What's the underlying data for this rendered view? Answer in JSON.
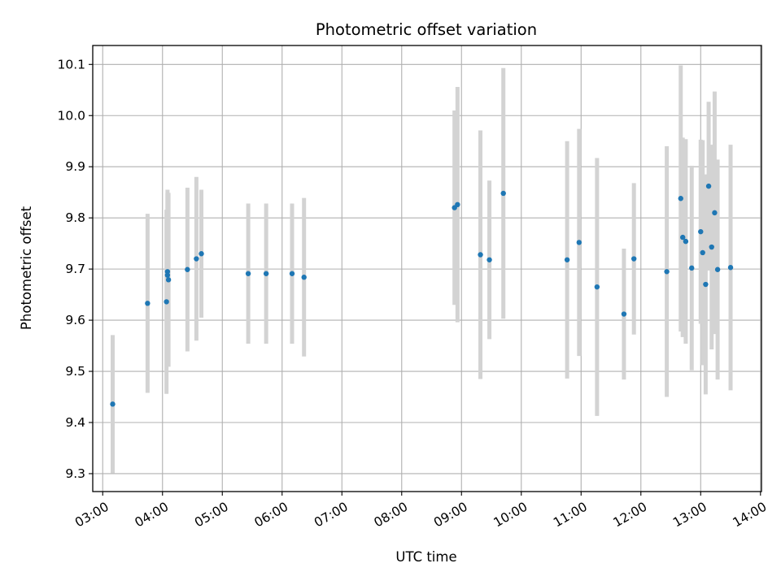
{
  "chart_data": {
    "type": "scatter",
    "title": "Photometric offset variation",
    "xlabel": "UTC time",
    "ylabel": "Photometric offset",
    "x_unit": "hour of day (UTC)",
    "xlim": [
      "02:50",
      "14:01"
    ],
    "ylim": [
      9.265,
      10.137
    ],
    "x_ticks": [
      "03:00",
      "04:00",
      "05:00",
      "06:00",
      "07:00",
      "08:00",
      "09:00",
      "10:00",
      "11:00",
      "12:00",
      "13:00",
      "14:00"
    ],
    "y_ticks": [
      "9.3",
      "9.4",
      "9.5",
      "9.6",
      "9.7",
      "9.8",
      "9.9",
      "10.0",
      "10.1"
    ],
    "grid": true,
    "marker_color": "#1f77b4",
    "errorbar_color": "#d3d3d3",
    "points": [
      {
        "x": "03:10",
        "y": 9.436,
        "err": 0.135
      },
      {
        "x": "03:45",
        "y": 9.633,
        "err": 0.175
      },
      {
        "x": "04:04",
        "y": 9.636,
        "err": 0.18
      },
      {
        "x": "04:05",
        "y": 9.695,
        "err": 0.16
      },
      {
        "x": "04:05",
        "y": 9.688,
        "err": 0.16
      },
      {
        "x": "04:06",
        "y": 9.679,
        "err": 0.17
      },
      {
        "x": "04:25",
        "y": 9.699,
        "err": 0.16
      },
      {
        "x": "04:34",
        "y": 9.72,
        "err": 0.16
      },
      {
        "x": "04:39",
        "y": 9.73,
        "err": 0.125
      },
      {
        "x": "05:26",
        "y": 9.691,
        "err": 0.137
      },
      {
        "x": "05:44",
        "y": 9.691,
        "err": 0.137
      },
      {
        "x": "06:10",
        "y": 9.691,
        "err": 0.137
      },
      {
        "x": "06:22",
        "y": 9.684,
        "err": 0.155
      },
      {
        "x": "08:53",
        "y": 9.82,
        "err": 0.19
      },
      {
        "x": "08:56",
        "y": 9.826,
        "err": 0.23
      },
      {
        "x": "09:19",
        "y": 9.728,
        "err": 0.243
      },
      {
        "x": "09:28",
        "y": 9.718,
        "err": 0.155
      },
      {
        "x": "09:42",
        "y": 9.848,
        "err": 0.245
      },
      {
        "x": "10:46",
        "y": 9.718,
        "err": 0.232
      },
      {
        "x": "10:58",
        "y": 9.752,
        "err": 0.222
      },
      {
        "x": "11:16",
        "y": 9.665,
        "err": 0.252
      },
      {
        "x": "11:43",
        "y": 9.612,
        "err": 0.128
      },
      {
        "x": "11:53",
        "y": 9.72,
        "err": 0.148
      },
      {
        "x": "12:26",
        "y": 9.695,
        "err": 0.245
      },
      {
        "x": "12:40",
        "y": 9.838,
        "err": 0.26
      },
      {
        "x": "12:42",
        "y": 9.762,
        "err": 0.195
      },
      {
        "x": "12:45",
        "y": 9.754,
        "err": 0.2
      },
      {
        "x": "12:51",
        "y": 9.702,
        "err": 0.2
      },
      {
        "x": "13:00",
        "y": 9.773,
        "err": 0.18
      },
      {
        "x": "13:02",
        "y": 9.732,
        "err": 0.22
      },
      {
        "x": "13:05",
        "y": 9.67,
        "err": 0.215
      },
      {
        "x": "13:08",
        "y": 9.862,
        "err": 0.165
      },
      {
        "x": "13:11",
        "y": 9.743,
        "err": 0.2
      },
      {
        "x": "13:14",
        "y": 9.81,
        "err": 0.237
      },
      {
        "x": "13:17",
        "y": 9.699,
        "err": 0.215
      },
      {
        "x": "13:30",
        "y": 9.703,
        "err": 0.24
      }
    ]
  }
}
